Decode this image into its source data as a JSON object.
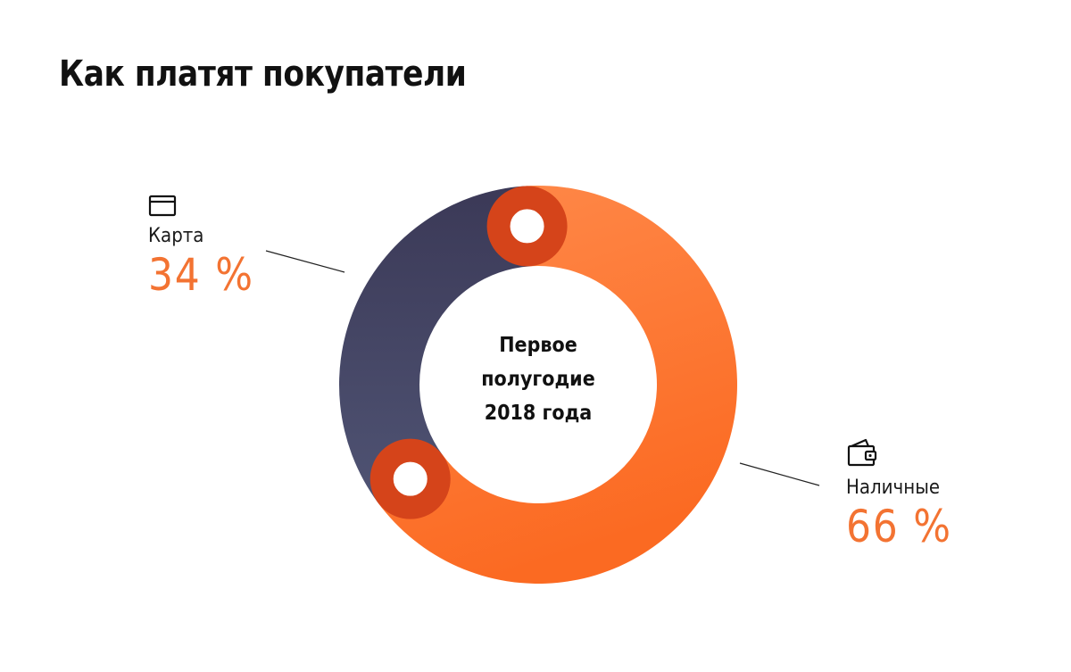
{
  "header": {
    "title": "Как платят покупатели"
  },
  "colors": {
    "card_start": "#3b3957",
    "card_end": "#4f5373",
    "cash_start": "#ff8a4b",
    "cash_end": "#fb6a22",
    "marker_ring": "#d5441a",
    "value_text": "#f37332",
    "leader_line": "#222222"
  },
  "legend": {
    "card": {
      "icon": "card-icon",
      "label": "Карта",
      "value": "34 %"
    },
    "cash": {
      "icon": "wallet-icon",
      "label": "Наличные",
      "value": "66 %"
    }
  },
  "center": {
    "lines": [
      "Первое",
      "полугодие",
      "2018 года"
    ]
  },
  "chart_data": {
    "type": "pie",
    "title": "Как платят покупатели",
    "subtitle": "Первое полугодие 2018 года",
    "unit": "%",
    "slices": [
      {
        "name": "Карта",
        "value": 34,
        "color": "#46465f"
      },
      {
        "name": "Наличные",
        "value": 66,
        "color": "#fb7635"
      }
    ]
  }
}
